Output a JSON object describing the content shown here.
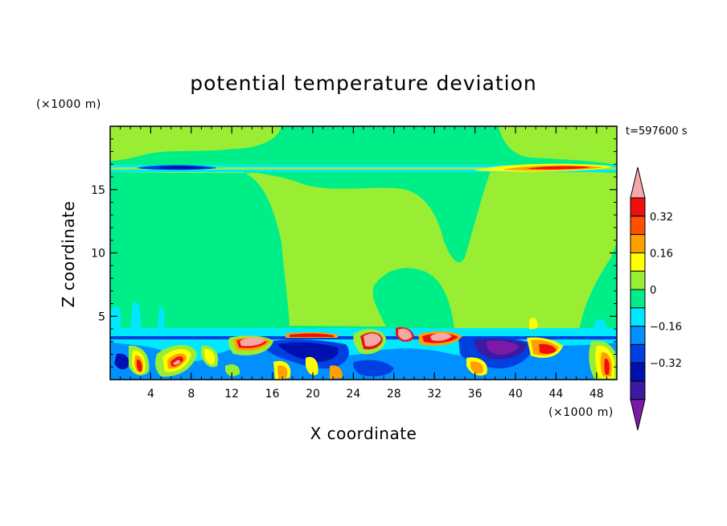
{
  "chart_data": {
    "type": "heatmap",
    "title": "potential temperature deviation",
    "xlabel": "X coordinate",
    "ylabel": "Z coordinate",
    "x_unit": "(×1000 m)",
    "y_unit": "(×1000 m)",
    "time_label": "t=597600 s",
    "xlim": [
      0,
      50
    ],
    "ylim": [
      0,
      20
    ],
    "x_ticks": [
      4,
      8,
      12,
      16,
      20,
      24,
      28,
      32,
      36,
      40,
      44,
      48
    ],
    "y_ticks": [
      5,
      10,
      15
    ],
    "colorbar": {
      "levels": [
        -0.48,
        -0.4,
        -0.32,
        -0.24,
        -0.16,
        -0.08,
        0,
        0.08,
        0.16,
        0.24,
        0.32,
        0.4
      ],
      "colors": [
        "#7a1aa6",
        "#3a1aa0",
        "#0010b0",
        "#0040e0",
        "#0090ff",
        "#00e8ff",
        "#00ee88",
        "#99ee33",
        "#ffff00",
        "#ffa000",
        "#ff5000",
        "#ee1010",
        "#f5a8a8"
      ],
      "labels": [
        "0.32",
        "0.16",
        "0",
        "−0.16",
        "−0.32"
      ],
      "label_values": [
        0.32,
        0.16,
        0,
        -0.16,
        -0.32
      ],
      "extend": "both"
    },
    "background_color": "#00ee88"
  }
}
